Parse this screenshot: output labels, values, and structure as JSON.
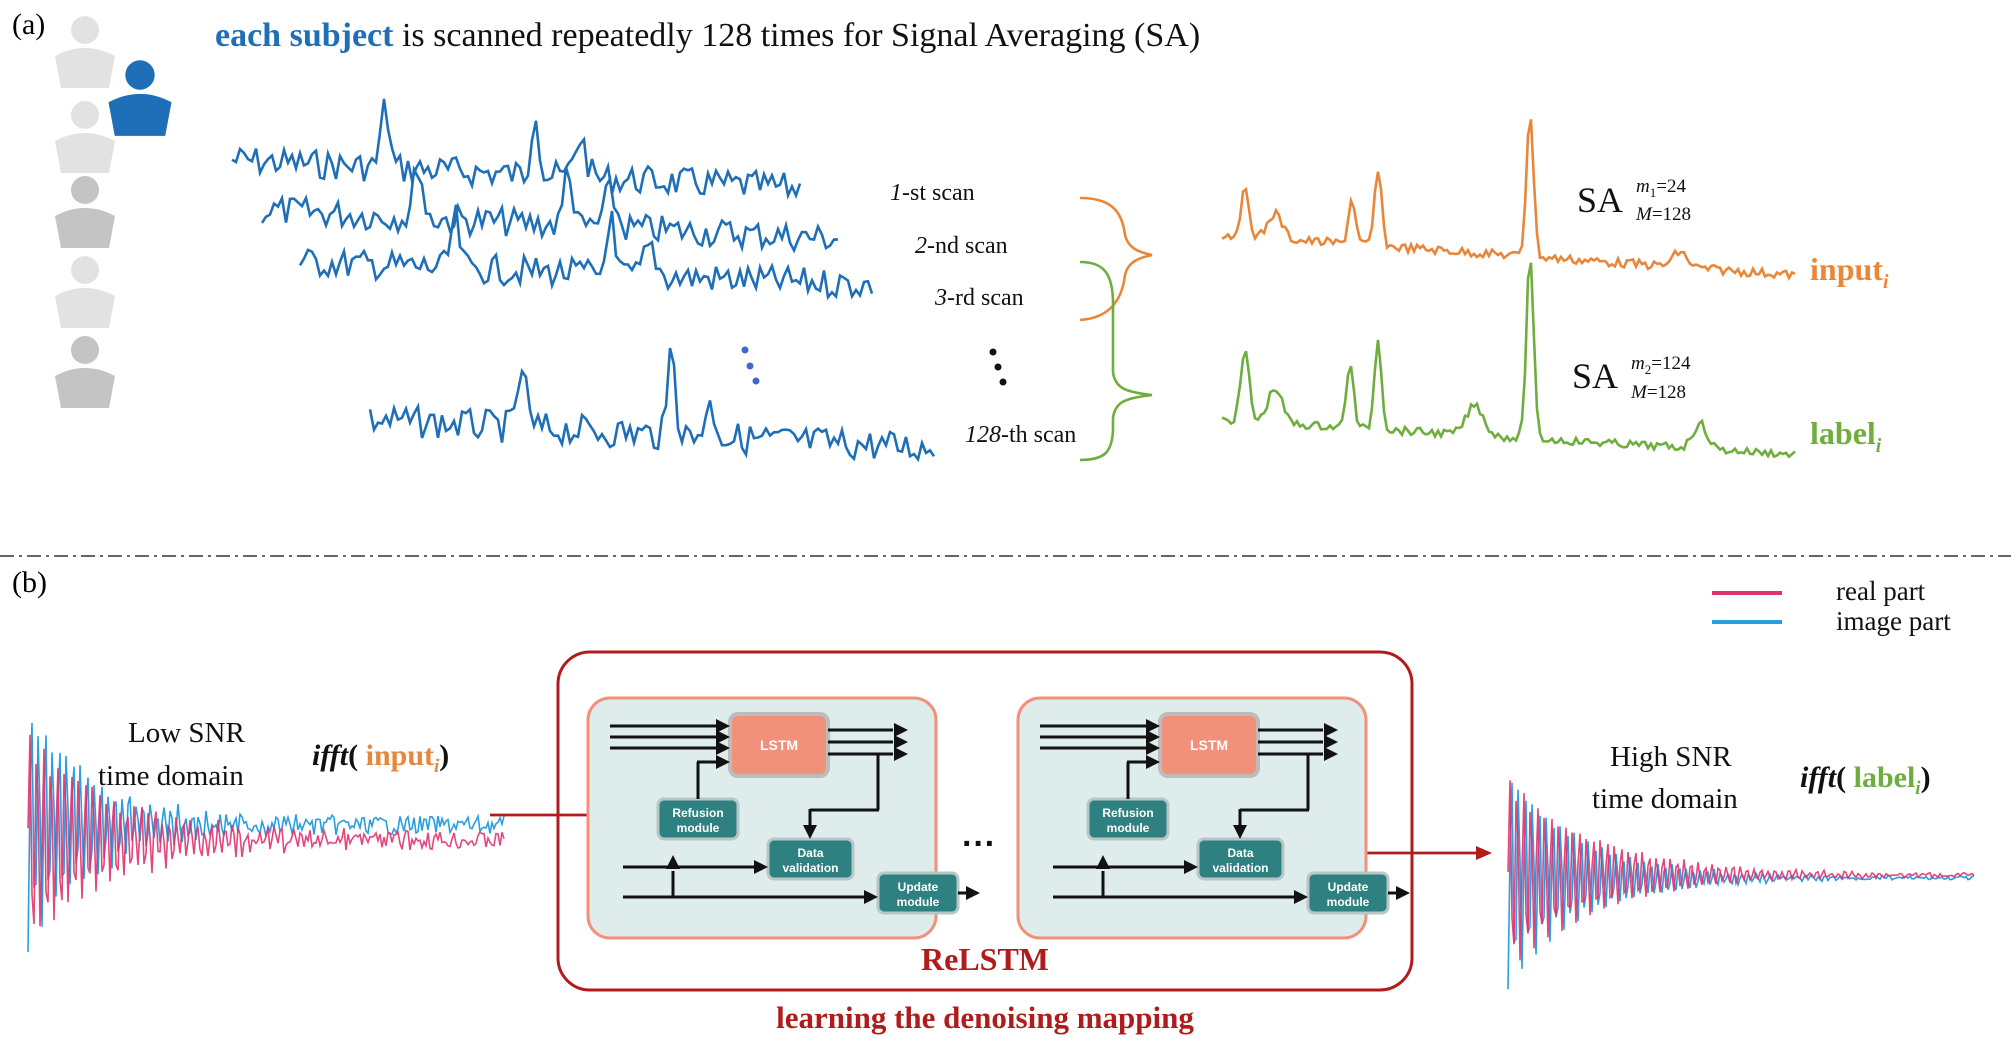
{
  "panel_a": {
    "letter": "(a)",
    "title_highlight": "each subject",
    "title_rest": " is scanned repeatedly 128 times for Signal Averaging (SA)",
    "scans": [
      {
        "num": "1",
        "suffix": "-st scan"
      },
      {
        "num": "2",
        "suffix": "-nd scan"
      },
      {
        "num": "3",
        "suffix": "-rd scan"
      },
      {
        "num": "128",
        "suffix": "-th scan"
      }
    ],
    "sa1": {
      "base": "SA",
      "sup_m": "m",
      "sup_sub": "1",
      "sup_val": "=24",
      "sub_m": "M",
      "sub_val": "=128"
    },
    "sa2": {
      "base": "SA",
      "sup_m": "m",
      "sup_sub": "2",
      "sup_val": "=124",
      "sub_m": "M",
      "sub_val": "=128"
    },
    "input_label": "input",
    "label_label": "label",
    "index": "i"
  },
  "panel_b": {
    "letter": "(b)",
    "legend": [
      {
        "name": "real part",
        "color": "#e0336e"
      },
      {
        "name": "image part",
        "color": "#2a9fe0"
      }
    ],
    "left_text_1": "Low SNR",
    "left_text_2": "time domain",
    "right_text_1": "High SNR",
    "right_text_2": "time domain",
    "ifft": "ifft",
    "ifft_input": "input",
    "ifft_label": "label",
    "paren_open": "( ",
    "paren_close": ")",
    "index": "i",
    "lstm": "LSTM",
    "refusion_1": "Refusion",
    "refusion_2": "module",
    "data_1": "Data",
    "data_2": "validation",
    "update_1": "Update",
    "update_2": "module",
    "ellipsis": "···",
    "model_name": "ReLSTM",
    "caption": "learning the denoising mapping"
  },
  "colors": {
    "blue": "#1f6fb8",
    "orange": "#e8873a",
    "green": "#6fae3e",
    "red": "#b01c1c",
    "teal": "#2f8080",
    "salmon": "#f2917a",
    "panel_bg": "#dfecec"
  }
}
